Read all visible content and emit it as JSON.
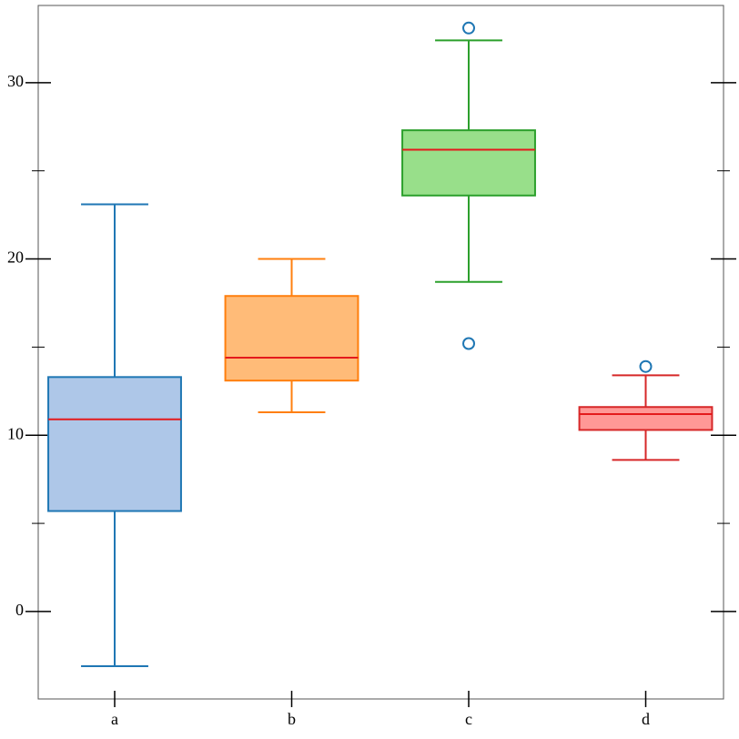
{
  "chart_data": {
    "type": "box",
    "categories": [
      "a",
      "b",
      "c",
      "d"
    ],
    "boxes": [
      {
        "whisker_low": -3.1,
        "q1": 5.7,
        "median": 10.9,
        "q3": 13.3,
        "whisker_high": 23.1,
        "outliers": [],
        "color": "#1f77b4",
        "fill": "#aec7e8"
      },
      {
        "whisker_low": 11.3,
        "q1": 13.1,
        "median": 14.4,
        "q3": 17.9,
        "whisker_high": 20.0,
        "outliers": [],
        "color": "#ff7f0e",
        "fill": "#ffbb78"
      },
      {
        "whisker_low": 18.7,
        "q1": 23.6,
        "median": 26.2,
        "q3": 27.3,
        "whisker_high": 32.4,
        "outliers": [
          33.1,
          15.2
        ],
        "color": "#2ca02c",
        "fill": "#98df8a"
      },
      {
        "whisker_low": 8.6,
        "q1": 10.3,
        "median": 11.2,
        "q3": 11.6,
        "whisker_high": 13.4,
        "outliers": [
          13.9
        ],
        "color": "#d62728",
        "fill": "#ff9896"
      }
    ],
    "median_color": "#e41a1c",
    "outlier_color": "#1f77b4",
    "ylim": [
      -4.96,
      34.38
    ],
    "yticks": [
      0,
      10,
      20,
      30
    ],
    "yminor_ticks": [
      5,
      15,
      25
    ]
  }
}
